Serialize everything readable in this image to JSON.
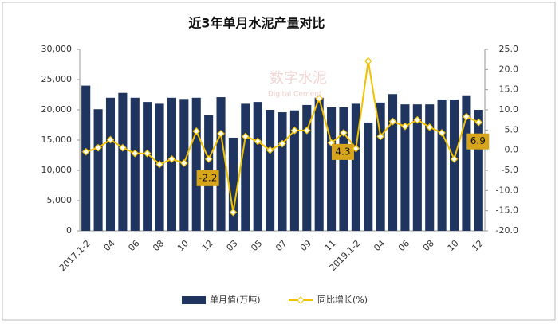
{
  "chart_data": {
    "type": "combo",
    "title": "近3年单月水泥产量对比",
    "watermark": "数字水泥",
    "watermark_sub": "Digital Cement",
    "categories": [
      "2017.1-2",
      null,
      "04",
      null,
      "06",
      null,
      "08",
      null,
      "10",
      null,
      "12",
      null,
      "03",
      null,
      "05",
      null,
      "07",
      null,
      "09",
      null,
      "11",
      null,
      "2019.1-2",
      null,
      "04",
      null,
      "06",
      null,
      "08",
      null,
      "10",
      null,
      "12"
    ],
    "series": [
      {
        "name": "单月值(万吨)",
        "type": "bar",
        "color": "#1f3560",
        "values": [
          24000,
          20100,
          22000,
          22800,
          22000,
          21300,
          21000,
          22000,
          21800,
          22000,
          19100,
          22100,
          15400,
          21000,
          21300,
          20000,
          19600,
          19900,
          20800,
          22000,
          20400,
          20400,
          21000,
          17900,
          21200,
          22600,
          20900,
          20900,
          20900,
          21700,
          21700,
          22400,
          20000
        ]
      },
      {
        "name": "同比增长(%)",
        "type": "line",
        "axis": "y2",
        "color": "#f2c200",
        "values": [
          -0.4,
          0.6,
          2.6,
          0.6,
          -0.8,
          -0.8,
          -3.5,
          -2.2,
          -3.2,
          4.7,
          -2.2,
          4.1,
          -15.4,
          3.4,
          2.2,
          0,
          1.6,
          4.9,
          4.9,
          12.8,
          1.8,
          4.3,
          0.4,
          22.1,
          3.4,
          7.1,
          5.9,
          7.5,
          5.7,
          4.3,
          -2.2,
          8.3,
          6.9
        ],
        "value_labels": [
          null,
          null,
          null,
          null,
          null,
          null,
          null,
          null,
          null,
          null,
          "-2.2",
          null,
          null,
          null,
          null,
          null,
          null,
          null,
          null,
          null,
          null,
          "4.3",
          null,
          null,
          null,
          null,
          null,
          null,
          null,
          null,
          null,
          null,
          "6.9"
        ]
      }
    ],
    "ylim": [
      0,
      30000
    ],
    "yticks": [
      0,
      {
        "value": 5000,
        "label": "5,000"
      },
      {
        "value": 10000,
        "label": "10,000"
      },
      {
        "value": 15000,
        "label": "15,000"
      },
      {
        "value": 20000,
        "label": "20,000"
      },
      {
        "value": 25000,
        "label": "25,000"
      },
      {
        "value": 30000,
        "label": "30,000"
      }
    ],
    "y2lim": [
      -20,
      25
    ],
    "y2ticks": [
      {
        "value": -20,
        "label": "-20.0"
      },
      {
        "value": -15,
        "label": "-15.0"
      },
      {
        "value": -10,
        "label": "-10.0"
      },
      {
        "value": -5,
        "label": "-5.0"
      },
      {
        "value": 0,
        "label": "0.0"
      },
      {
        "value": 5,
        "label": "5.0"
      },
      {
        "value": 10,
        "label": "10.0"
      },
      {
        "value": 15,
        "label": "15.0"
      },
      {
        "value": 20,
        "label": "20.0"
      },
      {
        "value": 25,
        "label": "25.0"
      }
    ],
    "grid": false
  }
}
